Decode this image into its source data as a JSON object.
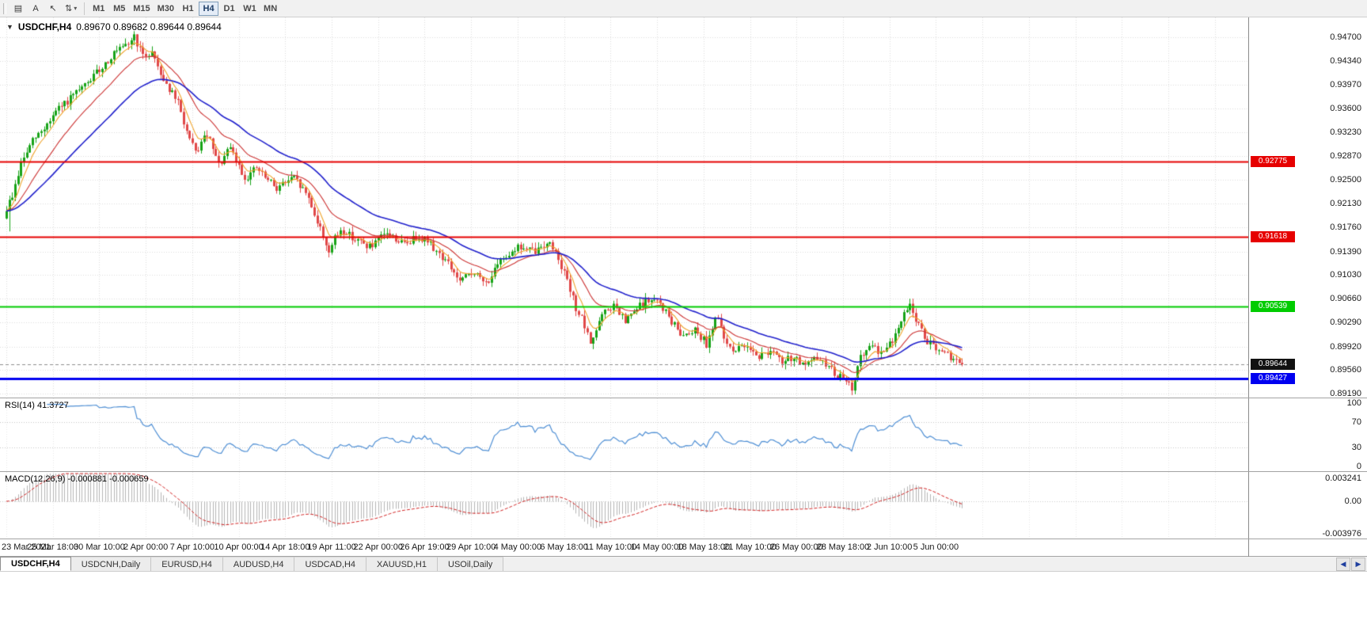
{
  "toolbar": {
    "tool_icons": [
      {
        "name": "charts-grid-icon",
        "glyph": "▤"
      },
      {
        "name": "text-tool-icon",
        "glyph": "A"
      },
      {
        "name": "cursor-tool-icon",
        "glyph": "↖"
      },
      {
        "name": "vertical-scale-tool-icon",
        "glyph": "⇅"
      }
    ],
    "dropdown_caret": "▾",
    "timeframes": [
      "M1",
      "M5",
      "M15",
      "M30",
      "H1",
      "H4",
      "D1",
      "W1",
      "MN"
    ],
    "active_timeframe": "H4"
  },
  "chart": {
    "collapse_glyph": "▼",
    "symbol_label": "USDCHF,H4",
    "ohlc_text": "0.89670 0.89682 0.89644 0.89644",
    "price_axis": {
      "ticks": [
        "0.94700",
        "0.94340",
        "0.93970",
        "0.93600",
        "0.93230",
        "0.92870",
        "0.92500",
        "0.92130",
        "0.91760",
        "0.91390",
        "0.91030",
        "0.90660",
        "0.90290",
        "0.89920",
        "0.89560",
        "0.89190"
      ]
    },
    "current_price_label": "0.89644"
  },
  "chart_data": {
    "type": "candlestick",
    "symbol": "USDCHF",
    "timeframe": "H4",
    "ylim": [
      0.8913,
      0.9501
    ],
    "candle_count": 330,
    "bars_per_gridline": 16,
    "up_color": "#17a317",
    "down_color": "#e04848",
    "close_waypoints": [
      [
        0,
        0.9205
      ],
      [
        2,
        0.9225
      ],
      [
        5,
        0.9275
      ],
      [
        9,
        0.931
      ],
      [
        13,
        0.933
      ],
      [
        17,
        0.9355
      ],
      [
        22,
        0.9375
      ],
      [
        27,
        0.9395
      ],
      [
        32,
        0.942
      ],
      [
        37,
        0.9445
      ],
      [
        41,
        0.9455
      ],
      [
        44,
        0.9472
      ],
      [
        47,
        0.944
      ],
      [
        50,
        0.9448
      ],
      [
        54,
        0.9405
      ],
      [
        59,
        0.9368
      ],
      [
        63,
        0.931
      ],
      [
        65,
        0.9292
      ],
      [
        69,
        0.932
      ],
      [
        73,
        0.9272
      ],
      [
        77,
        0.9298
      ],
      [
        82,
        0.9252
      ],
      [
        86,
        0.9268
      ],
      [
        90,
        0.9248
      ],
      [
        93,
        0.9238
      ],
      [
        96,
        0.9246
      ],
      [
        99,
        0.9252
      ],
      [
        102,
        0.9235
      ],
      [
        104,
        0.9222
      ],
      [
        107,
        0.9185
      ],
      [
        109,
        0.9162
      ],
      [
        111,
        0.914
      ],
      [
        113,
        0.9158
      ],
      [
        115,
        0.9172
      ],
      [
        118,
        0.9165
      ],
      [
        120,
        0.9158
      ],
      [
        123,
        0.915
      ],
      [
        126,
        0.9146
      ],
      [
        129,
        0.916
      ],
      [
        131,
        0.9168
      ],
      [
        134,
        0.9158
      ],
      [
        137,
        0.915
      ],
      [
        140,
        0.9158
      ],
      [
        142,
        0.9163
      ],
      [
        145,
        0.9155
      ],
      [
        148,
        0.914
      ],
      [
        152,
        0.912
      ],
      [
        156,
        0.9092
      ],
      [
        159,
        0.9102
      ],
      [
        161,
        0.9108
      ],
      [
        163,
        0.9096
      ],
      [
        165,
        0.909
      ],
      [
        168,
        0.9108
      ],
      [
        171,
        0.913
      ],
      [
        174,
        0.914
      ],
      [
        176,
        0.9146
      ],
      [
        179,
        0.9142
      ],
      [
        182,
        0.9138
      ],
      [
        184,
        0.9146
      ],
      [
        186,
        0.9154
      ],
      [
        188,
        0.9145
      ],
      [
        190,
        0.913
      ],
      [
        192,
        0.9105
      ],
      [
        194,
        0.9078
      ],
      [
        196,
        0.9052
      ],
      [
        198,
        0.9034
      ],
      [
        200,
        0.9008
      ],
      [
        201,
        0.8998
      ],
      [
        203,
        0.9018
      ],
      [
        205,
        0.904
      ],
      [
        207,
        0.9048
      ],
      [
        209,
        0.9055
      ],
      [
        211,
        0.9042
      ],
      [
        213,
        0.903
      ],
      [
        215,
        0.904
      ],
      [
        217,
        0.905
      ],
      [
        219,
        0.9058
      ],
      [
        221,
        0.9063
      ],
      [
        223,
        0.9062
      ],
      [
        225,
        0.9058
      ],
      [
        227,
        0.9045
      ],
      [
        229,
        0.903
      ],
      [
        231,
        0.9018
      ],
      [
        233,
        0.901
      ],
      [
        235,
        0.9015
      ],
      [
        237,
        0.902
      ],
      [
        239,
        0.9008
      ],
      [
        241,
        0.8996
      ],
      [
        243,
        0.9022
      ],
      [
        244,
        0.904
      ],
      [
        246,
        0.902
      ],
      [
        247,
        0.9002
      ],
      [
        249,
        0.8992
      ],
      [
        251,
        0.8986
      ],
      [
        253,
        0.899
      ],
      [
        255,
        0.8996
      ],
      [
        257,
        0.8986
      ],
      [
        259,
        0.8976
      ],
      [
        261,
        0.8982
      ],
      [
        263,
        0.8986
      ],
      [
        265,
        0.8976
      ],
      [
        267,
        0.8966
      ],
      [
        269,
        0.8972
      ],
      [
        271,
        0.8976
      ],
      [
        273,
        0.8968
      ],
      [
        275,
        0.896
      ],
      [
        277,
        0.8968
      ],
      [
        279,
        0.8975
      ],
      [
        281,
        0.8968
      ],
      [
        283,
        0.896
      ],
      [
        285,
        0.8952
      ],
      [
        287,
        0.8945
      ],
      [
        289,
        0.8936
      ],
      [
        291,
        0.8928
      ],
      [
        292,
        0.8945
      ],
      [
        294,
        0.8975
      ],
      [
        296,
        0.8985
      ],
      [
        298,
        0.899
      ],
      [
        300,
        0.8986
      ],
      [
        302,
        0.8985
      ],
      [
        304,
        0.8995
      ],
      [
        306,
        0.901
      ],
      [
        308,
        0.903
      ],
      [
        310,
        0.9052
      ],
      [
        311,
        0.906
      ],
      [
        313,
        0.9032
      ],
      [
        315,
        0.9015
      ],
      [
        317,
        0.9
      ],
      [
        319,
        0.899
      ],
      [
        321,
        0.8985
      ],
      [
        323,
        0.898
      ],
      [
        325,
        0.8975
      ],
      [
        327,
        0.897
      ],
      [
        329,
        0.89644
      ]
    ],
    "spikes": [
      {
        "i": 1,
        "low": 0.917
      },
      {
        "i": 44,
        "high": 0.9476
      },
      {
        "i": 291,
        "low": 0.8919
      },
      {
        "i": 311,
        "high": 0.9066
      }
    ],
    "moving_averages": [
      {
        "period": 6,
        "color": "#efa32a",
        "width": 1.1
      },
      {
        "period": 18,
        "color": "#cc3333",
        "width": 1.1
      },
      {
        "period": 40,
        "color": "#2121cc",
        "width": 1.6
      }
    ],
    "horizontal_lines": [
      {
        "price": 0.92775,
        "label": "0.92775",
        "color": "#e60000",
        "width": 2
      },
      {
        "price": 0.91618,
        "label": "0.91618",
        "color": "#e60000",
        "width": 2
      },
      {
        "price": 0.90539,
        "label": "0.90539",
        "color": "#00cc00",
        "width": 2
      },
      {
        "price": 0.89427,
        "label": "0.89427",
        "color": "#0000f0",
        "width": 3
      }
    ],
    "current_price": 0.89644,
    "rsi": {
      "period": 14,
      "current": 41.3727,
      "color": "#4f8fd4",
      "levels": [
        100,
        70,
        30,
        0
      ]
    },
    "macd": {
      "fast": 12,
      "slow": 26,
      "signal": 9,
      "histogram_color": "#b4b4b4",
      "signal_color": "#d02020",
      "current_histogram": -0.000881,
      "current_signal": -0.000659,
      "scale_ticks": [
        {
          "v": 0.003241,
          "label": "0.003241"
        },
        {
          "v": 0,
          "label": "0.00"
        },
        {
          "v": -0.003976,
          "label": "-0.003976"
        }
      ]
    }
  },
  "rsi_panel": {
    "label": "RSI(14) 41.3727"
  },
  "macd_panel": {
    "label": "MACD(12,26,9) -0.000881 -0.000659"
  },
  "time_axis": {
    "labels": [
      "23 Mar 2021",
      "25 Mar 18:00",
      "30 Mar 10:00",
      "2 Apr 00:00",
      "7 Apr 10:00",
      "10 Apr 00:00",
      "14 Apr 18:00",
      "19 Apr 11:00",
      "22 Apr 00:00",
      "26 Apr 19:00",
      "29 Apr 10:00",
      "4 May 00:00",
      "6 May 18:00",
      "11 May 10:00",
      "14 May 00:00",
      "18 May 18:00",
      "21 May 10:00",
      "26 May 00:00",
      "28 May 18:00",
      "2 Jun 10:00",
      "5 Jun 00:00"
    ]
  },
  "tabs": {
    "items": [
      "USDCHF,H4",
      "USDCNH,Daily",
      "EURUSD,H4",
      "AUDUSD,H4",
      "USDCAD,H4",
      "XAUUSD,H1",
      "USOil,Daily"
    ],
    "active_index": 0,
    "left_arrow": "◀",
    "right_arrow": "▶"
  }
}
